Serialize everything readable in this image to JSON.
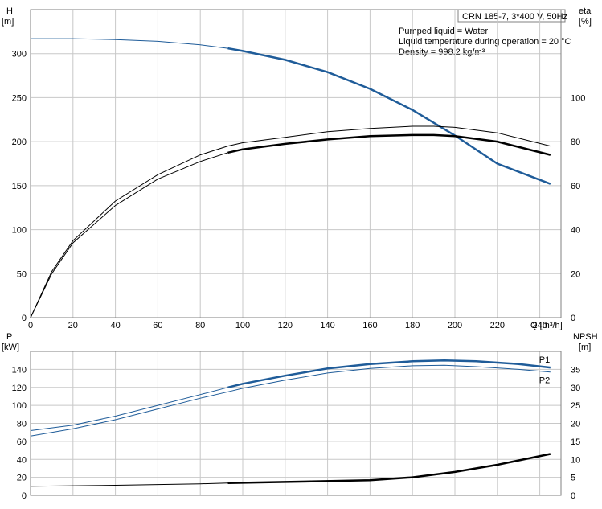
{
  "chart_data": [
    {
      "type": "line",
      "panel": "top",
      "title": "CRN 185-7, 3*400 V, 50Hz",
      "annotations": [
        "Pumped liquid = Water",
        "Liquid temperature during operation = 20 °C",
        "Density = 998.2 kg/m³"
      ],
      "xlabel": "Q [m³/h]",
      "xlim": [
        0,
        250
      ],
      "xticks": [
        0,
        20,
        40,
        60,
        80,
        100,
        120,
        140,
        160,
        180,
        200,
        220,
        240
      ],
      "ylabel_left": "H\n[m]",
      "ylim_left": [
        0,
        350
      ],
      "yticks_left": [
        0,
        50,
        100,
        150,
        200,
        250,
        300
      ],
      "ylabel_right": "eta\n[%]",
      "ylim_right": [
        0,
        140
      ],
      "yticks_right": [
        0,
        20,
        40,
        60,
        80,
        100
      ],
      "grid": true,
      "series": [
        {
          "color": "#1f5c99",
          "axis": "left",
          "x": [
            0,
            20,
            40,
            60,
            80,
            93,
            100,
            120,
            140,
            160,
            180,
            200,
            220,
            245
          ],
          "y": [
            317,
            317,
            316,
            314,
            310,
            306,
            303,
            293,
            279,
            260,
            236,
            207,
            175,
            152
          ],
          "bold_from": 93
        },
        {
          "color": "#000000",
          "axis": "right",
          "x": [
            0,
            10,
            20,
            40,
            60,
            80,
            93,
            100,
            120,
            140,
            160,
            180,
            190,
            200,
            220,
            245
          ],
          "y": [
            0,
            20,
            34,
            51,
            63,
            71,
            75,
            76.5,
            79,
            81,
            82.5,
            83,
            83,
            82.5,
            80,
            74
          ],
          "bold_from": 93
        },
        {
          "color": "#000000",
          "axis": "right",
          "x": [
            0,
            10,
            20,
            40,
            60,
            80,
            93,
            100,
            120,
            140,
            160,
            180,
            190,
            200,
            220,
            245
          ],
          "y": [
            0,
            21,
            35,
            53,
            65,
            74,
            78,
            79.5,
            82,
            84.5,
            86,
            87,
            87,
            86.5,
            84,
            78
          ],
          "bold_from": 999
        }
      ]
    },
    {
      "type": "line",
      "panel": "bottom",
      "xlim": [
        0,
        250
      ],
      "ylabel_left": "P\n[kW]",
      "ylim_left": [
        0,
        160
      ],
      "yticks_left": [
        0,
        20,
        40,
        60,
        80,
        100,
        120,
        140
      ],
      "ylabel_right": "NPSH\n[m]",
      "ylim_right": [
        0,
        40
      ],
      "yticks_right": [
        0,
        5,
        10,
        15,
        20,
        25,
        30,
        35
      ],
      "grid": true,
      "series": [
        {
          "name": "P1",
          "color": "#1f5c99",
          "axis": "left",
          "x": [
            0,
            20,
            40,
            60,
            80,
            93,
            100,
            120,
            140,
            160,
            180,
            195,
            210,
            230,
            245
          ],
          "y": [
            72,
            78,
            88,
            100,
            112,
            120,
            124,
            133,
            141,
            146,
            149,
            150,
            149,
            146,
            142
          ],
          "bold_from": 93
        },
        {
          "name": "P2",
          "color": "#1f5c99",
          "axis": "left",
          "x": [
            0,
            20,
            40,
            60,
            80,
            93,
            100,
            120,
            140,
            160,
            180,
            195,
            210,
            230,
            245
          ],
          "y": [
            66,
            74,
            84,
            96,
            108,
            115,
            119,
            128,
            136,
            141,
            144,
            144.5,
            143,
            140,
            137
          ],
          "bold_from": 999
        },
        {
          "color": "#000000",
          "axis": "right",
          "x": [
            0,
            40,
            80,
            93,
            120,
            160,
            180,
            200,
            220,
            245
          ],
          "y": [
            2.5,
            2.8,
            3.2,
            3.4,
            3.7,
            4.2,
            5,
            6.5,
            8.5,
            11.5
          ],
          "bold_from": 93
        }
      ]
    }
  ]
}
